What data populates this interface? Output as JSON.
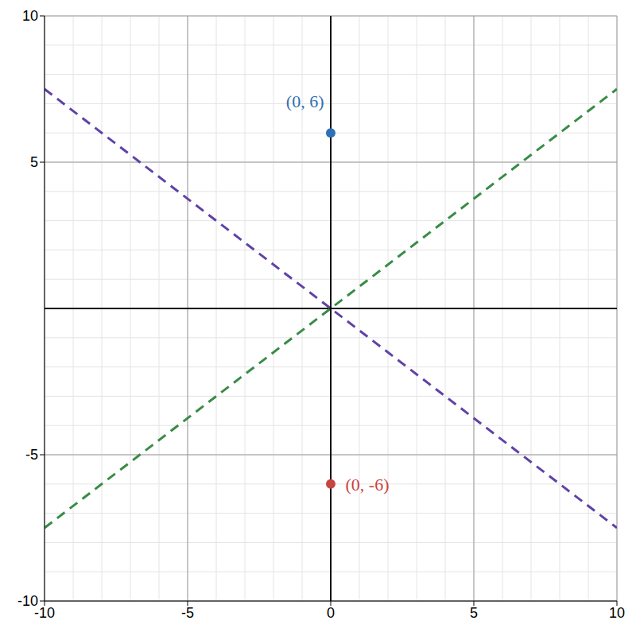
{
  "chart_data": {
    "type": "line",
    "xlim": [
      -10,
      10
    ],
    "ylim": [
      -10,
      10
    ],
    "xticks": [
      -10,
      -5,
      0,
      5,
      10
    ],
    "yticks": [
      -10,
      -5,
      5,
      10
    ],
    "grid": true,
    "series": [
      {
        "type": "line",
        "color": "#6042a6",
        "line_style": "dashed",
        "x": [
          -10,
          10
        ],
        "values": [
          7.5,
          -7.5
        ]
      },
      {
        "type": "line",
        "color": "#388c46",
        "line_style": "dashed",
        "x": [
          -10,
          10
        ],
        "values": [
          -7.5,
          7.5
        ]
      },
      {
        "type": "scatter",
        "color": "#2d70b3",
        "marker": "circle",
        "x": [
          0
        ],
        "values": [
          6
        ],
        "value_labels": [
          "(0, 6)"
        ]
      },
      {
        "type": "scatter",
        "color": "#c74440",
        "marker": "circle",
        "x": [
          0
        ],
        "values": [
          -6
        ],
        "value_labels": [
          "(0, -6)"
        ]
      }
    ]
  }
}
